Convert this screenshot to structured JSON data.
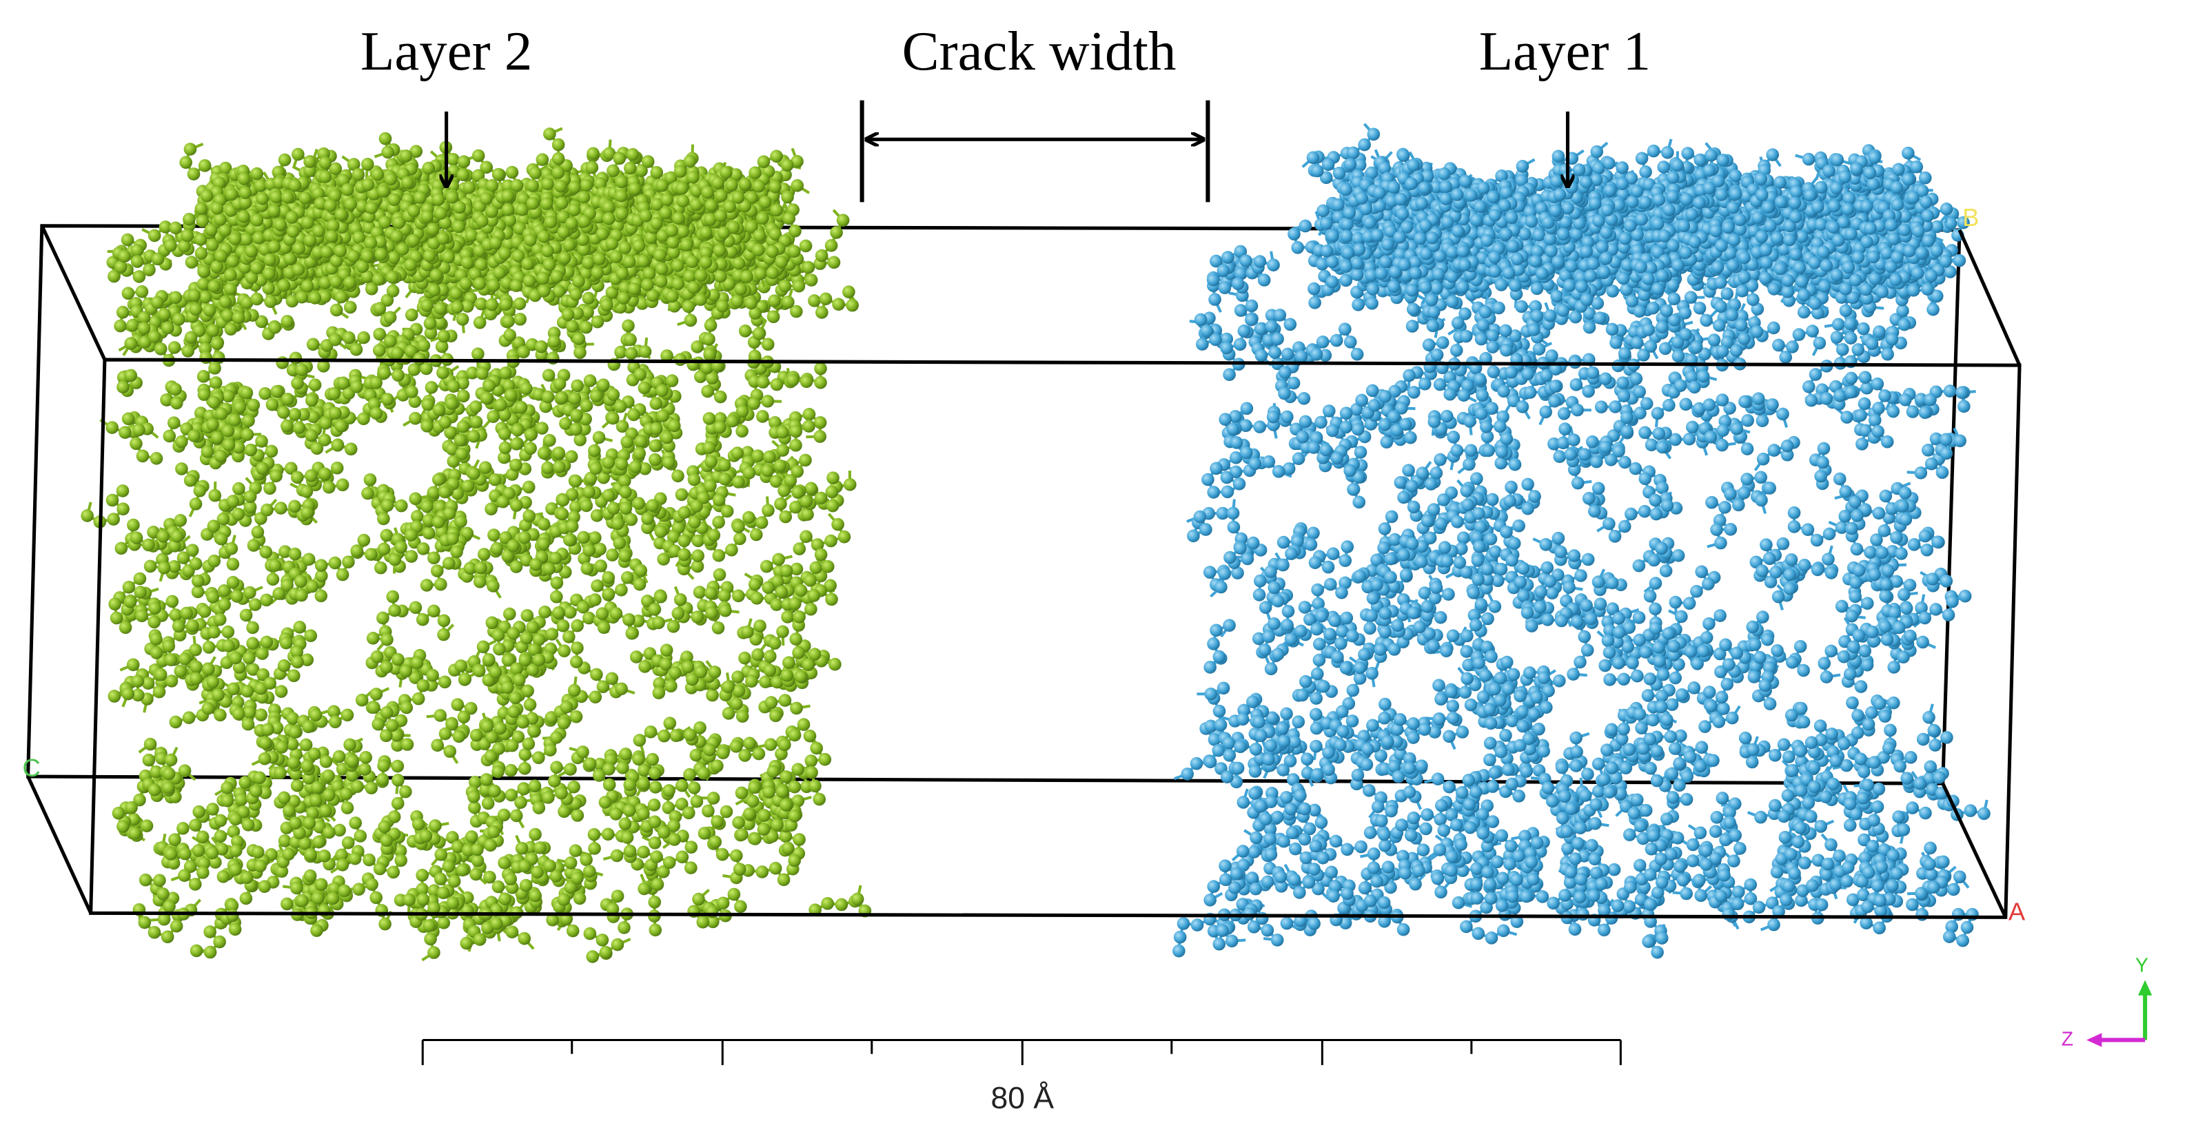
{
  "labels": {
    "layer_2": "Layer 2",
    "crack_width": "Crack width",
    "layer_1": "Layer 1"
  },
  "box_labels": {
    "a": "A",
    "b": "B",
    "c": "C"
  },
  "scale_bar": {
    "label": "80 Å"
  },
  "axes": {
    "y": "Y",
    "z": "Z"
  }
}
